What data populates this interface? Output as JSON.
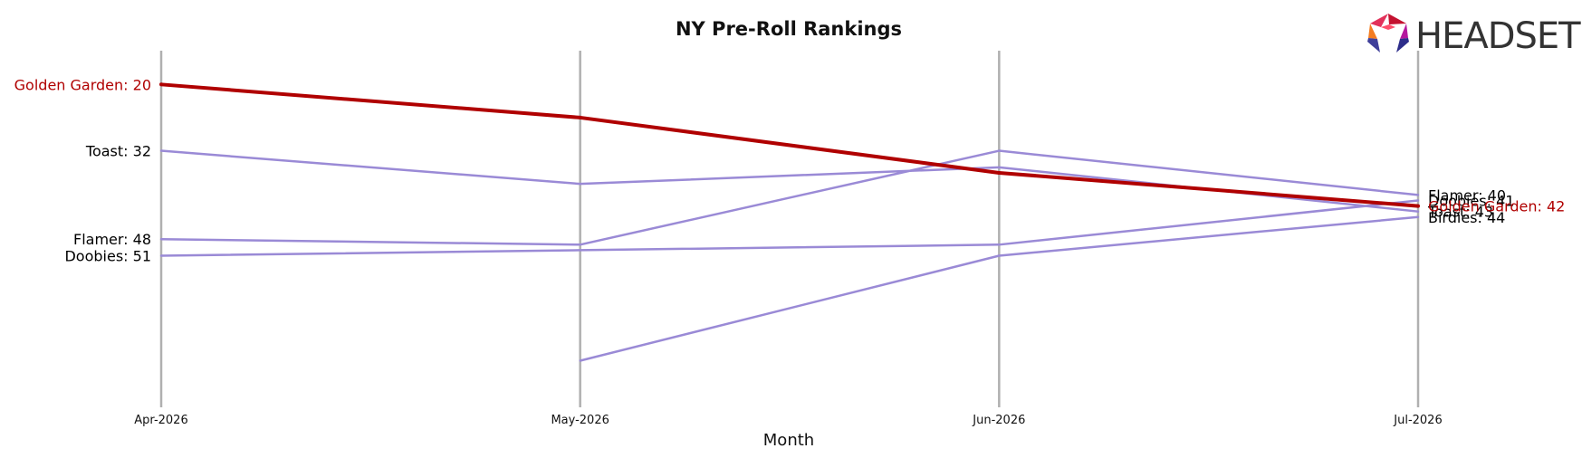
{
  "logo": {
    "text": "HEADSET"
  },
  "chart_data": {
    "type": "line",
    "title": "NY Pre-Roll Rankings",
    "xlabel": "Month",
    "ylabel": "",
    "categories": [
      "Apr-2026",
      "May-2026",
      "Jun-2026",
      "Jul-2026"
    ],
    "y_inverted": true,
    "ylim": [
      17,
      75
    ],
    "grid": "vertical",
    "series": [
      {
        "name": "Golden Garden",
        "color": "#b00000",
        "highlight": true,
        "values": [
          20,
          26,
          36,
          42
        ]
      },
      {
        "name": "Toast",
        "color": "#9a8ad6",
        "highlight": false,
        "values": [
          32,
          38,
          35,
          43
        ]
      },
      {
        "name": "Flamer",
        "color": "#9a8ad6",
        "highlight": false,
        "values": [
          48,
          49,
          32,
          40
        ]
      },
      {
        "name": "Doobies",
        "color": "#9a8ad6",
        "highlight": false,
        "values": [
          51,
          50,
          49,
          41
        ]
      },
      {
        "name": "Birdies",
        "color": "#9a8ad6",
        "highlight": false,
        "values": [
          null,
          70,
          51,
          44
        ]
      }
    ]
  }
}
